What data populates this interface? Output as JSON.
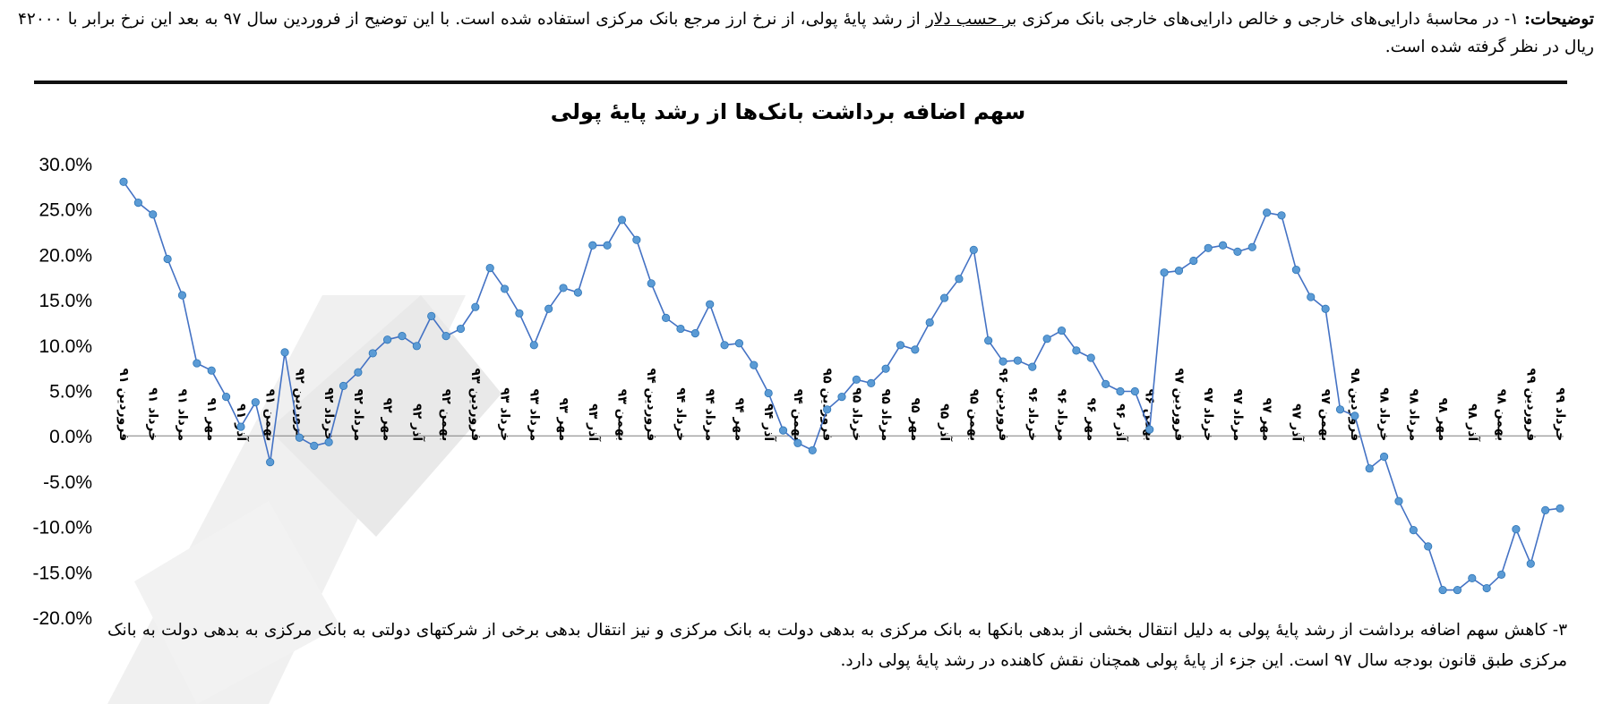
{
  "notes": {
    "top_lead": "توضیحات:",
    "top_part1": " ۱- در محاسبۀ دارایی‌های خارجی و خالص دارایی‌های خارجی بانک مرکزی ",
    "top_underlined": "بر حسب دلار",
    "top_part2": " از رشد پایۀ پولی، از نرخ ارز مرجع بانک مرکزی استفاده شده است. با این توضیح از فروردین سال ۹۷ به بعد این نرخ برابر با ۴۲۰۰۰ ریال در نظر گرفته شده است.",
    "bottom": "۳- کاهش سهم اضافه برداشت از رشد پایۀ پولی به دلیل انتقال بخشی از بدهی بانکها به بانک مرکزی به بدهی دولت به بانک مرکزی و نیز انتقال بدهی برخی از شرکتهای دولتی به بانک مرکزی به بدهی دولت به بانک مرکزی طبق قانون بودجه سال ۹۷ است. این جزء از پایۀ پولی همچنان نقش کاهنده در رشد پایۀ پولی دارد."
  },
  "colors": {
    "line": "#4472C4",
    "marker": "#5B9BD5",
    "marker_stroke": "#2E75B6",
    "rule": "#111111"
  },
  "chart_data": {
    "type": "line",
    "title": "سهم اضافه برداشت بانک‌ها از رشد پایۀ پولی",
    "xlabel": "",
    "ylabel": "",
    "ylim": [
      -0.2,
      0.3
    ],
    "y_ticks": [
      "30.0%",
      "25.0%",
      "20.0%",
      "15.0%",
      "10.0%",
      "5.0%",
      "0.0%",
      "-5.0%",
      "-10.0%",
      "-15.0%",
      "-20.0%"
    ],
    "y_tick_values": [
      0.3,
      0.25,
      0.2,
      0.15,
      0.1,
      0.05,
      0.0,
      -0.05,
      -0.1,
      -0.15,
      -0.2
    ],
    "grid": false,
    "legend": "none",
    "x_tick_labels": [
      {
        "i": 0,
        "text": "فروردین ۹۱"
      },
      {
        "i": 2,
        "text": "خرداد ۹۱"
      },
      {
        "i": 4,
        "text": "مرداد ۹۱"
      },
      {
        "i": 6,
        "text": "مهر ۹۱"
      },
      {
        "i": 8,
        "text": "آذر ۹۱"
      },
      {
        "i": 10,
        "text": "بهمن ۹۱"
      },
      {
        "i": 12,
        "text": "فروردین ۹۲"
      },
      {
        "i": 14,
        "text": "خرداد ۹۲"
      },
      {
        "i": 16,
        "text": "مرداد ۹۲"
      },
      {
        "i": 18,
        "text": "مهر ۹۲"
      },
      {
        "i": 20,
        "text": "آذر ۹۲"
      },
      {
        "i": 22,
        "text": "بهمن ۹۲"
      },
      {
        "i": 24,
        "text": "فروردین ۹۳"
      },
      {
        "i": 26,
        "text": "خرداد ۹۳"
      },
      {
        "i": 28,
        "text": "مرداد ۹۳"
      },
      {
        "i": 30,
        "text": "مهر ۹۳"
      },
      {
        "i": 32,
        "text": "آذر ۹۳"
      },
      {
        "i": 34,
        "text": "بهمن ۹۳"
      },
      {
        "i": 36,
        "text": "فروردین ۹۴"
      },
      {
        "i": 38,
        "text": "خرداد ۹۴"
      },
      {
        "i": 40,
        "text": "مرداد ۹۴"
      },
      {
        "i": 42,
        "text": "مهر ۹۴"
      },
      {
        "i": 44,
        "text": "آذر ۹۴"
      },
      {
        "i": 46,
        "text": "بهمن ۹۴"
      },
      {
        "i": 48,
        "text": "فروردین ۹۵"
      },
      {
        "i": 50,
        "text": "خرداد ۹۵"
      },
      {
        "i": 52,
        "text": "مرداد ۹۵"
      },
      {
        "i": 54,
        "text": "مهر ۹۵"
      },
      {
        "i": 56,
        "text": "آذر ۹۵"
      },
      {
        "i": 58,
        "text": "بهمن ۹۵"
      },
      {
        "i": 60,
        "text": "فروردین ۹۶"
      },
      {
        "i": 62,
        "text": "خرداد ۹۶"
      },
      {
        "i": 64,
        "text": "مرداد ۹۶"
      },
      {
        "i": 66,
        "text": "مهر ۹۶"
      },
      {
        "i": 68,
        "text": "آذر ۹۶"
      },
      {
        "i": 70,
        "text": "بهمن ۹۶"
      },
      {
        "i": 72,
        "text": "فروردین ۹۷"
      },
      {
        "i": 74,
        "text": "خرداد ۹۷"
      },
      {
        "i": 76,
        "text": "مرداد ۹۷"
      },
      {
        "i": 78,
        "text": "مهر ۹۷"
      },
      {
        "i": 80,
        "text": "آذر ۹۷"
      },
      {
        "i": 82,
        "text": "بهمن ۹۷"
      },
      {
        "i": 84,
        "text": "فروردین ۹۸"
      },
      {
        "i": 86,
        "text": "خرداد ۹۸"
      },
      {
        "i": 88,
        "text": "مرداد ۹۸"
      },
      {
        "i": 90,
        "text": "مهر ۹۸"
      },
      {
        "i": 92,
        "text": "آذر ۹۸"
      },
      {
        "i": 94,
        "text": "بهمن ۹۸"
      },
      {
        "i": 96,
        "text": "فروردین ۹۹"
      },
      {
        "i": 98,
        "text": "خرداد ۹۹"
      }
    ],
    "series": [
      {
        "values": [
          0.28,
          0.257,
          0.244,
          0.195,
          0.155,
          0.08,
          0.072,
          0.043,
          0.01,
          0.037,
          -0.029,
          0.092,
          -0.002,
          -0.011,
          -0.007,
          0.055,
          0.07,
          0.091,
          0.106,
          0.11,
          0.099,
          0.132,
          0.11,
          0.118,
          0.142,
          0.185,
          0.162,
          0.135,
          0.1,
          0.14,
          0.163,
          0.158,
          0.21,
          0.21,
          0.238,
          0.216,
          0.168,
          0.13,
          0.118,
          0.113,
          0.145,
          0.1,
          0.102,
          0.078,
          0.047,
          0.006,
          -0.008,
          -0.016,
          0.029,
          0.043,
          0.062,
          0.058,
          0.074,
          0.1,
          0.095,
          0.125,
          0.152,
          0.173,
          0.205,
          0.105,
          0.082,
          0.083,
          0.076,
          0.107,
          0.116,
          0.094,
          0.086,
          0.057,
          0.049,
          0.049,
          0.007,
          0.18,
          0.182,
          0.193,
          0.207,
          0.21,
          0.203,
          0.208,
          0.246,
          0.243,
          0.183,
          0.153,
          0.14,
          0.029,
          0.022,
          -0.036,
          -0.023,
          -0.072,
          -0.104,
          -0.122,
          -0.17,
          -0.17,
          -0.157,
          -0.168,
          -0.153,
          -0.103,
          -0.141,
          -0.082,
          -0.08
        ]
      }
    ]
  }
}
